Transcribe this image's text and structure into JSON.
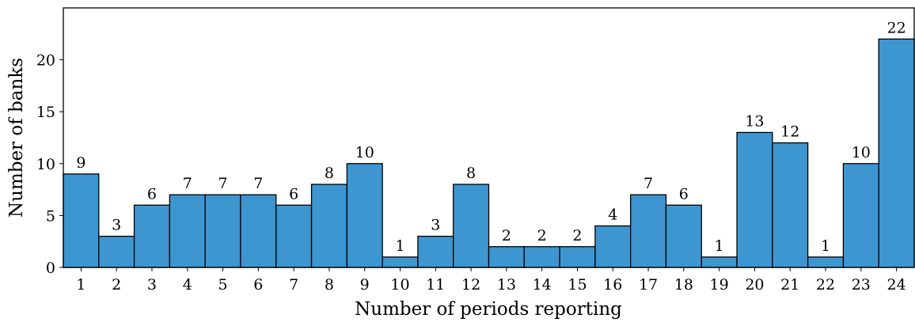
{
  "chart_data": {
    "type": "bar",
    "x_label": "Number of periods reporting",
    "y_label": "Number of banks",
    "categories": [
      "1",
      "2",
      "3",
      "4",
      "5",
      "6",
      "7",
      "8",
      "9",
      "10",
      "11",
      "12",
      "13",
      "14",
      "15",
      "16",
      "17",
      "18",
      "19",
      "20",
      "21",
      "22",
      "23",
      "24"
    ],
    "values": [
      9,
      3,
      6,
      7,
      7,
      7,
      6,
      8,
      10,
      1,
      3,
      8,
      2,
      2,
      2,
      4,
      7,
      6,
      1,
      13,
      12,
      1,
      10,
      22
    ],
    "color": "#3e96d0",
    "ylim": [
      0,
      25
    ],
    "yticks": [
      0,
      5,
      10,
      15,
      20
    ],
    "grid": false,
    "show_value_labels": true
  }
}
